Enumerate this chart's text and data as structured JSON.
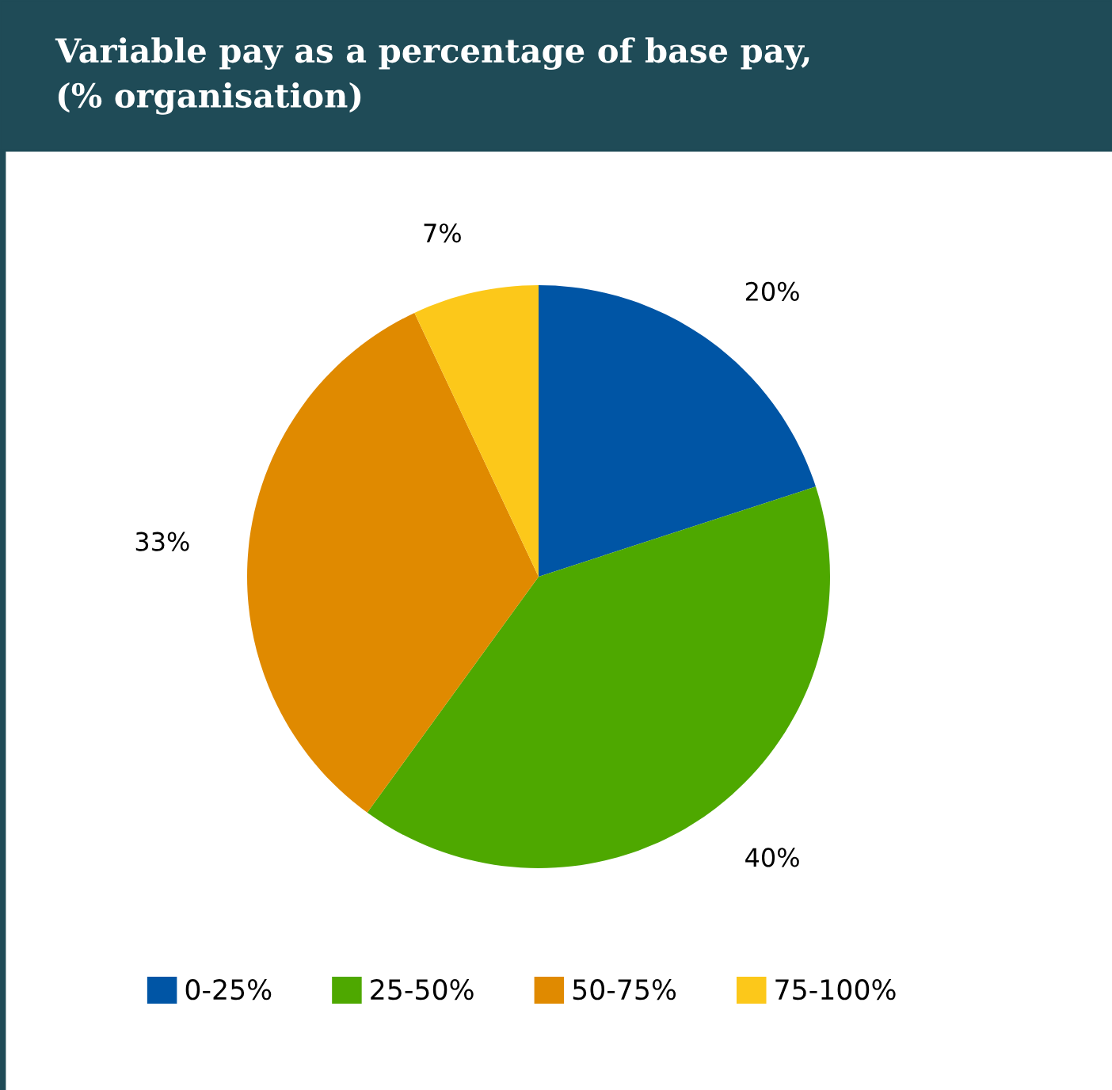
{
  "chart_data": {
    "type": "pie",
    "title": "Variable pay as a percentage of base pay,\n(% organisation)",
    "categories": [
      "0-25%",
      "25-50%",
      "50-75%",
      "75-100%"
    ],
    "values": [
      20,
      40,
      33,
      7
    ],
    "value_labels": [
      "20%",
      "40%",
      "33%",
      "7%"
    ],
    "colors": [
      "#0055a5",
      "#4ea800",
      "#e08a00",
      "#fcc81a"
    ],
    "legend": "bottom"
  }
}
